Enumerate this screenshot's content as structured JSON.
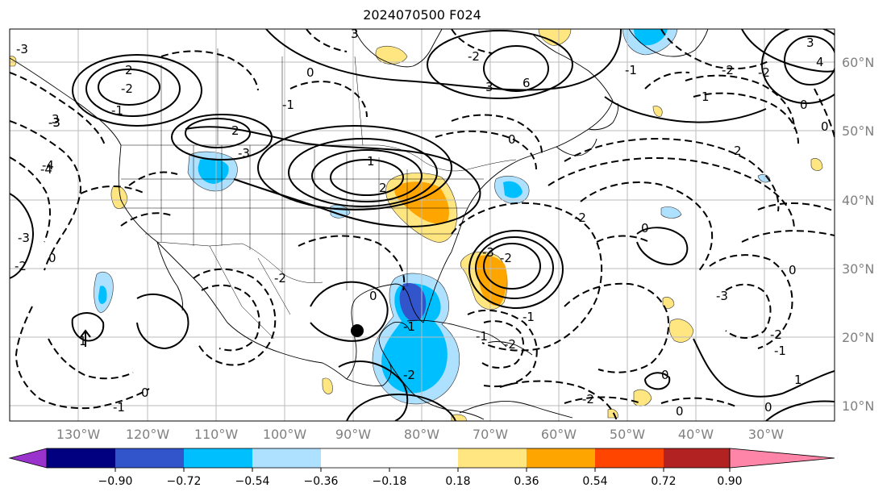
{
  "title": "2024070500 F024",
  "map": {
    "lon_labels": [
      "130°W",
      "120°W",
      "110°W",
      "100°W",
      "90°W",
      "80°W",
      "70°W",
      "60°W",
      "50°W",
      "40°W",
      "30°W"
    ],
    "lat_labels": [
      "60°N",
      "50°N",
      "40°N",
      "30°N",
      "20°N",
      "10°N"
    ],
    "contour_labels": [
      "-3",
      "-3",
      "2",
      "-1",
      "-3",
      "-4",
      "-2",
      "0",
      "-2",
      "-3",
      "2",
      "0",
      "3",
      "-1",
      "-2",
      "-3",
      "1",
      "2",
      "0",
      "6",
      "3",
      "-2",
      "-3",
      "0",
      "0",
      "-3",
      "-2",
      "-1",
      "2",
      "-2",
      "-2",
      "-4",
      "3",
      "-2",
      "0",
      "1",
      "0",
      "0",
      "-2",
      "-1",
      "-2",
      "0",
      "0",
      "-2",
      "-1",
      "-2",
      "0",
      "-1",
      "3",
      "-1",
      "1",
      "-1",
      "0",
      "4",
      "1"
    ],
    "colors": {
      "contour": "#000000",
      "grid": "#bbbbbb",
      "tick_label": "#808080"
    }
  },
  "colorbar": {
    "ticks": [
      "−0.90",
      "−0.72",
      "−0.54",
      "−0.36",
      "−0.18",
      "0.18",
      "0.36",
      "0.54",
      "0.72",
      "0.90"
    ],
    "bins": [
      "#9933cc",
      "#000080",
      "#3355cc",
      "#00bfff",
      "#aee0ff",
      "#ffffff",
      "#ffe680",
      "#ffa500",
      "#ff4500",
      "#b22222",
      "#ff85a8"
    ],
    "extend": "both"
  },
  "fill_colors": {
    "blue_light": "#aee0ff",
    "blue": "#00bfff",
    "blue_dark": "#3355cc",
    "yellow": "#ffe680",
    "orange": "#ffa500"
  }
}
